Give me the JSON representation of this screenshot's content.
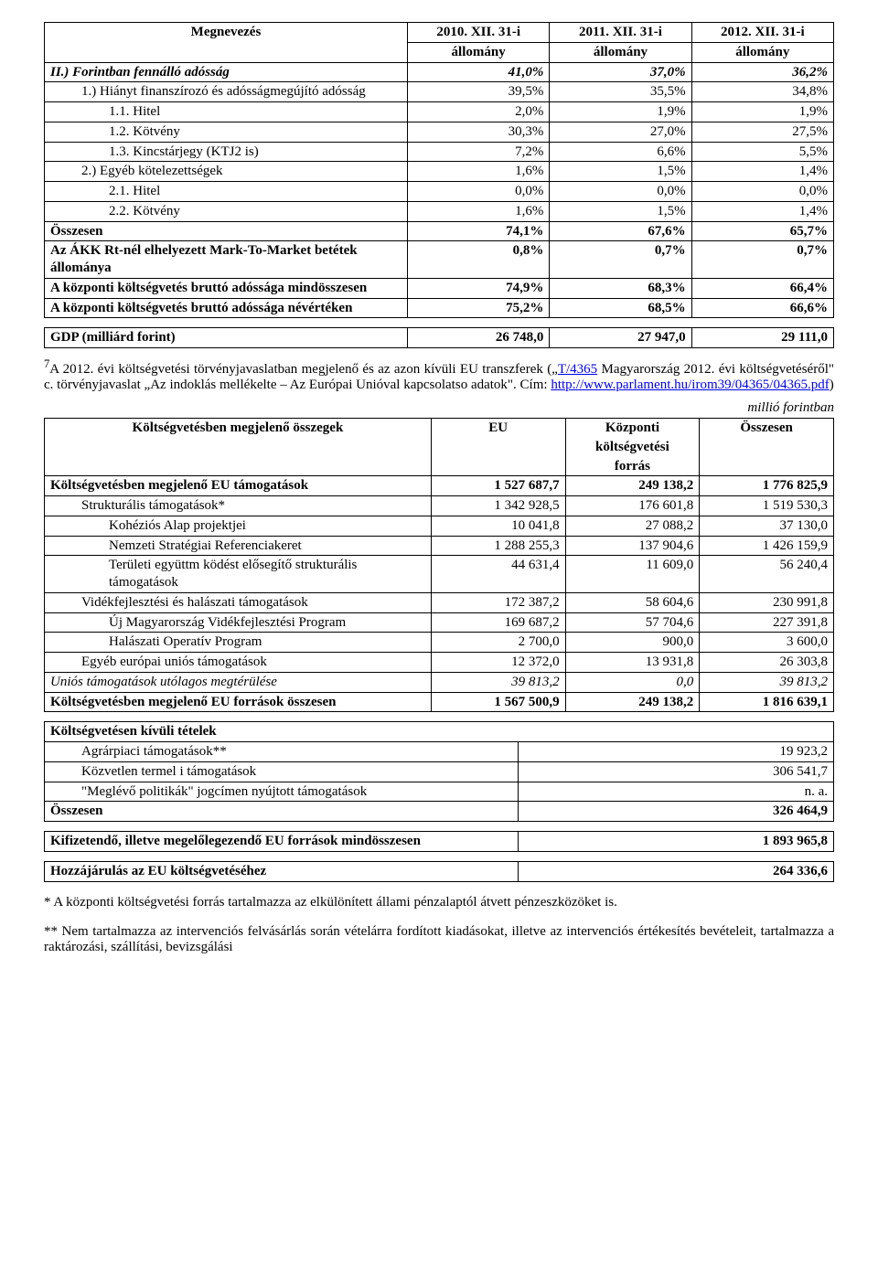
{
  "table1": {
    "head": {
      "c0": "Megnevezés",
      "c1a": "2010. XII. 31-i",
      "c1b": "állomány",
      "c2a": "2011. XII. 31-i",
      "c2b": "állomány",
      "c3a": "2012. XII. 31-i",
      "c3b": "állomány"
    },
    "rows": [
      {
        "label": "II.) Forintban fennálló adósság",
        "v1": "41,0%",
        "v2": "37,0%",
        "v3": "36,2%",
        "bold": true,
        "italic": true,
        "indent": 0
      },
      {
        "label": "1.) Hiányt finanszírozó és adósságmegújító adósság",
        "v1": "39,5%",
        "v2": "35,5%",
        "v3": "34,8%",
        "indent": 1
      },
      {
        "label": "1.1. Hitel",
        "v1": "2,0%",
        "v2": "1,9%",
        "v3": "1,9%",
        "indent": 2
      },
      {
        "label": "1.2. Kötvény",
        "v1": "30,3%",
        "v2": "27,0%",
        "v3": "27,5%",
        "indent": 2
      },
      {
        "label": "1.3. Kincstárjegy (KTJ2 is)",
        "v1": "7,2%",
        "v2": "6,6%",
        "v3": "5,5%",
        "indent": 2
      },
      {
        "label": "2.) Egyéb kötelezettségek",
        "v1": "1,6%",
        "v2": "1,5%",
        "v3": "1,4%",
        "indent": 1
      },
      {
        "label": "2.1. Hitel",
        "v1": "0,0%",
        "v2": "0,0%",
        "v3": "0,0%",
        "indent": 2
      },
      {
        "label": "2.2. Kötvény",
        "v1": "1,6%",
        "v2": "1,5%",
        "v3": "1,4%",
        "indent": 2
      },
      {
        "label": "Összesen",
        "v1": "74,1%",
        "v2": "67,6%",
        "v3": "65,7%",
        "bold": true,
        "indent": 0
      },
      {
        "label": "Az ÁKK Rt-nél elhelyezett Mark-To-Market betétek állománya",
        "v1": "0,8%",
        "v2": "0,7%",
        "v3": "0,7%",
        "bold": true,
        "indent": 0
      },
      {
        "label": "A központi költségvetés bruttó adóssága mindösszesen",
        "v1": "74,9%",
        "v2": "68,3%",
        "v3": "66,4%",
        "bold": true,
        "indent": 0
      },
      {
        "label": "A központi költségvetés bruttó adóssága névértéken",
        "v1": "75,2%",
        "v2": "68,5%",
        "v3": "66,6%",
        "bold": true,
        "indent": 0
      }
    ],
    "gdp": {
      "label": "GDP (milliárd forint)",
      "v1": "26 748,0",
      "v2": "27 947,0",
      "v3": "29 111,0"
    }
  },
  "para1": {
    "sup": "7",
    "t1": "A 2012. évi költségvetési törvényjavaslatban megjelenő és az azon kívüli EU transzferek („",
    "link1_text": "T/4365",
    "t2": " Magyarország 2012. évi költségvetéséről\" c. törvényjavaslat „Az indoklás mellékelte – Az Európai Unióval kapcsolatso adatok\". Cím: ",
    "link2_text": "http://www.parlament.hu/irom39/04365/04365.pdf",
    "t3": ")"
  },
  "unit_label": "millió forintban",
  "table2": {
    "head": {
      "c0": "Költségvetésben megjelenő összegek",
      "c1": "EU",
      "c2a": "Központi",
      "c2b": "költségvetési",
      "c2c": "forrás",
      "c3": "Összesen"
    },
    "rows": [
      {
        "label": "Költségvetésben megjelenő EU támogatások",
        "v1": "1 527 687,7",
        "v2": "249 138,2",
        "v3": "1 776 825,9",
        "bold": true,
        "indent": 0
      },
      {
        "label": "Strukturális támogatások*",
        "v1": "1 342 928,5",
        "v2": "176 601,8",
        "v3": "1 519 530,3",
        "indent": 1
      },
      {
        "label": "Kohéziós Alap projektjei",
        "v1": "10 041,8",
        "v2": "27 088,2",
        "v3": "37 130,0",
        "indent": 2
      },
      {
        "label": "Nemzeti Stratégiai Referenciakeret",
        "v1": "1 288 255,3",
        "v2": "137 904,6",
        "v3": "1 426 159,9",
        "indent": 2
      },
      {
        "label": "Területi együttm ködést elősegítő strukturális támogatások",
        "v1": "44 631,4",
        "v2": "11 609,0",
        "v3": "56 240,4",
        "indent": 2
      },
      {
        "label": "Vidékfejlesztési és halászati támogatások",
        "v1": "172 387,2",
        "v2": "58 604,6",
        "v3": "230 991,8",
        "indent": 1
      },
      {
        "label": "Új Magyarország Vidékfejlesztési Program",
        "v1": "169 687,2",
        "v2": "57 704,6",
        "v3": "227 391,8",
        "indent": 2
      },
      {
        "label": "Halászati Operatív Program",
        "v1": "2 700,0",
        "v2": "900,0",
        "v3": "3 600,0",
        "indent": 2
      },
      {
        "label": "Egyéb európai uniós támogatások",
        "v1": "12 372,0",
        "v2": "13 931,8",
        "v3": "26 303,8",
        "indent": 1
      },
      {
        "label": "Uniós támogatások utólagos megtérülése",
        "v1": "39 813,2",
        "v2": "0,0",
        "v3": "39 813,2",
        "italic": true,
        "indent": 0
      },
      {
        "label": "Költségvetésben megjelenő EU források összesen",
        "v1": "1 567 500,9",
        "v2": "249 138,2",
        "v3": "1 816 639,1",
        "bold": true,
        "indent": 0
      }
    ]
  },
  "table3": {
    "title": "Költségvetésen kívüli tételek",
    "rows": [
      {
        "label": "Agrárpiaci támogatások**",
        "v1": "19 923,2",
        "indent": 1
      },
      {
        "label": "Közvetlen termel i támogatások",
        "v1": "306 541,7",
        "indent": 1
      },
      {
        "label": "\"Meglévő politikák\" jogcímen nyújtott támogatások",
        "v1": "n. a.",
        "indent": 1
      },
      {
        "label": "Összesen",
        "v1": "326 464,9",
        "bold": true,
        "indent": 0
      }
    ]
  },
  "table4": {
    "label": "Kifizetendő, illetve megelőlegezendő EU források mindösszesen",
    "v1": "1 893 965,8"
  },
  "table5": {
    "label": "Hozzájárulás az EU költségvetéséhez",
    "v1": "264 336,6"
  },
  "footnotes": {
    "f1": "* A központi költségvetési forrás tartalmazza az elkülönített állami pénzalaptól átvett pénzeszközöket is.",
    "f2": "** Nem tartalmazza az intervenciós felvásárlás során vételárra fordított kiadásokat, illetve az intervenciós értékesítés bevételeit, tartalmazza a raktározási, szállítási, bevizsgálási"
  }
}
